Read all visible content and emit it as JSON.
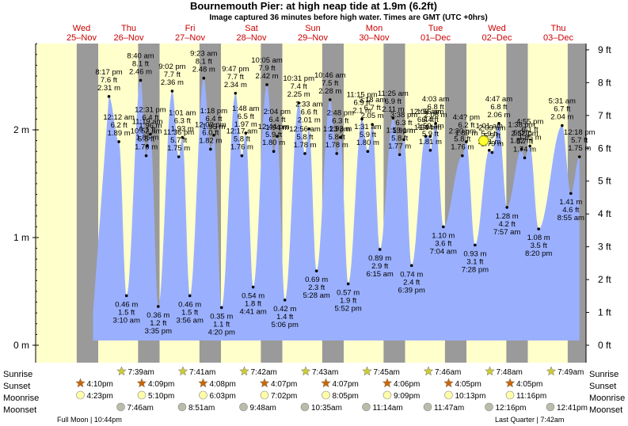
{
  "header": {
    "title": "Bournemouth Pier: at high  neap tide at 1.9m (6.2ft)",
    "subtitle": "Image captured 36 minutes before high water. Times are GMT (UTC +0hrs)"
  },
  "days": [
    {
      "dow": "Wed",
      "date": "25–Nov"
    },
    {
      "dow": "Thu",
      "date": "26–Nov"
    },
    {
      "dow": "Fri",
      "date": "27–Nov"
    },
    {
      "dow": "Sat",
      "date": "28–Nov"
    },
    {
      "dow": "Sun",
      "date": "29–Nov"
    },
    {
      "dow": "Mon",
      "date": "30–Nov"
    },
    {
      "dow": "Tue",
      "date": "01–Dec"
    },
    {
      "dow": "Wed",
      "date": "02–Dec"
    },
    {
      "dow": "Thu",
      "date": "03–Dec"
    }
  ],
  "axes": {
    "left_ticks": [
      "0 m",
      "1 m",
      "2 m"
    ],
    "right_ticks": [
      "0 ft",
      "1 ft",
      "2 ft",
      "3 ft",
      "4 ft",
      "5 ft",
      "6 ft",
      "7 ft",
      "8 ft",
      "9 ft"
    ]
  },
  "chart_data": {
    "type": "area",
    "x_unit": "hours from 25-Nov 00:00 GMT",
    "y_unit": "m",
    "ylim": [
      -0.05,
      2.95
    ],
    "xlim": [
      -5,
      220
    ],
    "current_point": {
      "t": 166.8,
      "h": 1.9
    },
    "series": [
      {
        "t": "8:17 pm",
        "d": 0,
        "h": 2.31,
        "ft": "7.6 ft",
        "m": "2.31 m"
      },
      {
        "t": "12:12 am",
        "d": 1,
        "h": 1.89,
        "ft": "6.2 ft",
        "m": "1.89 m"
      },
      {
        "t": "3:10 am",
        "d": 1,
        "h": 0.46,
        "ft": "1.5 ft",
        "m": "0.46 m"
      },
      {
        "t": "8:40 am",
        "d": 1,
        "h": 2.46,
        "ft": "8.1 ft",
        "m": "2.46 m"
      },
      {
        "t": "10:52 am",
        "d": 1,
        "h": 1.76,
        "ft": "5.8 ft",
        "m": "1.76 m"
      },
      {
        "t": "12:31 pm",
        "d": 1,
        "h": 1.96,
        "ft": "6.4 ft",
        "m": "1.96 m"
      },
      {
        "t": "3:35 pm",
        "d": 1,
        "h": 0.36,
        "ft": "1.2 ft",
        "m": "0.36 m"
      },
      {
        "t": "9:02 pm",
        "d": 1,
        "h": 2.36,
        "ft": "7.7 ft",
        "m": "2.36 m"
      },
      {
        "t": "11:19 am",
        "d": 1,
        "h": 1.85,
        "ft": "6.1 ft",
        "m": "1.85 m"
      },
      {
        "t": "1:01 am",
        "d": 2,
        "h": 1.93,
        "ft": "6.3 ft",
        "m": "1.93 m"
      },
      {
        "t": "3:56 am",
        "d": 2,
        "h": 0.46,
        "ft": "1.5 ft",
        "m": "0.46 m"
      },
      {
        "t": "9:23 am",
        "d": 2,
        "h": 2.48,
        "ft": "8.1 ft",
        "m": "2.48 m"
      },
      {
        "t": "11:36 pm",
        "d": 1,
        "h": 1.75,
        "ft": "5.7 ft",
        "m": "1.75 m"
      },
      {
        "t": "1:18 pm",
        "d": 2,
        "h": 1.95,
        "ft": "6.4 ft",
        "m": "1.95 m"
      },
      {
        "t": "4:20 pm",
        "d": 2,
        "h": 0.35,
        "ft": "1.1 ft",
        "m": "0.35 m"
      },
      {
        "t": "9:47 pm",
        "d": 2,
        "h": 2.34,
        "ft": "7.7 ft",
        "m": "2.34 m"
      },
      {
        "t": "12:02 pm",
        "d": 2,
        "h": 1.82,
        "ft": "6.0 ft",
        "m": "1.82 m"
      },
      {
        "t": "1:48 am",
        "d": 3,
        "h": 1.97,
        "ft": "6.5 ft",
        "m": "1.97 m"
      },
      {
        "t": "4:41 am",
        "d": 3,
        "h": 0.54,
        "ft": "1.8 ft",
        "m": "0.54 m"
      },
      {
        "t": "10:05 am",
        "d": 3,
        "h": 2.42,
        "ft": "7.9 ft",
        "m": "2.42 m"
      },
      {
        "t": "12:17 am",
        "d": 3,
        "h": 1.76,
        "ft": "5.8 ft",
        "m": "1.76 m"
      },
      {
        "t": "2:04 pm",
        "d": 3,
        "h": 1.94,
        "ft": "6.4 ft",
        "m": "1.94 m"
      },
      {
        "t": "5:06 pm",
        "d": 3,
        "h": 0.42,
        "ft": "1.4 ft",
        "m": "0.42 m"
      },
      {
        "t": "10:31 pm",
        "d": 3,
        "h": 2.25,
        "ft": "7.4 ft",
        "m": "2.25 m"
      },
      {
        "t": "12:44 pm",
        "d": 3,
        "h": 1.8,
        "ft": "5.9 ft",
        "m": "1.80 m"
      },
      {
        "t": "2:33 am",
        "d": 4,
        "h": 2.01,
        "ft": "6.6 ft",
        "m": "2.01 m"
      },
      {
        "t": "5:28 am",
        "d": 4,
        "h": 0.69,
        "ft": "2.3 ft",
        "m": "0.69 m"
      },
      {
        "t": "10:46 am",
        "d": 4,
        "h": 2.28,
        "ft": "7.5 ft",
        "m": "2.28 m"
      },
      {
        "t": "12:56 am",
        "d": 4,
        "h": 1.78,
        "ft": "5.8 ft",
        "m": "1.78 m"
      },
      {
        "t": "2:48 pm",
        "d": 4,
        "h": 1.93,
        "ft": "6.3 ft",
        "m": "1.93 m"
      },
      {
        "t": "5:52 pm",
        "d": 4,
        "h": 0.57,
        "ft": "1.9 ft",
        "m": "0.57 m"
      },
      {
        "t": "11:15 pm",
        "d": 4,
        "h": 2.1,
        "ft": "6.9 ft",
        "m": "2.1 m"
      },
      {
        "t": "1:23 pm",
        "d": 4,
        "h": 1.78,
        "ft": "5.8 ft",
        "m": "1.78 m"
      },
      {
        "t": "3:18 am",
        "d": 5,
        "h": 2.05,
        "ft": "6.7 ft",
        "m": "2.05 m"
      },
      {
        "t": "6:15 am",
        "d": 5,
        "h": 0.89,
        "ft": "2.9 ft",
        "m": "0.89 m"
      },
      {
        "t": "11:25 am",
        "d": 5,
        "h": 2.11,
        "ft": "6.9 ft",
        "m": "2.11 m"
      },
      {
        "t": "1:31 am",
        "d": 5,
        "h": 1.8,
        "ft": "5.9 ft",
        "m": "1.80 m"
      },
      {
        "t": "3:38 pm",
        "d": 5,
        "h": 1.91,
        "ft": "6.3 ft",
        "m": "1.91 m"
      },
      {
        "t": "6:39 pm",
        "d": 5,
        "h": 0.74,
        "ft": "2.4 ft",
        "m": "0.74 m"
      },
      {
        "t": "12:08 am",
        "d": 6,
        "h": 1.94,
        "ft": "6.4 ft",
        "m": "1.94 m"
      },
      {
        "t": "1:59 pm",
        "d": 5,
        "h": 1.77,
        "ft": "5.8 ft",
        "m": "1.77 m"
      },
      {
        "t": "4:03 am",
        "d": 6,
        "h": 2.06,
        "ft": "6.8 ft",
        "m": "2.06 m"
      },
      {
        "t": "7:04 am",
        "d": 6,
        "h": 1.1,
        "ft": "3.6 ft",
        "m": "1.10 m"
      },
      {
        "t": "1:59 am",
        "d": 6,
        "h": 1.81,
        "ft": "5.9 ft",
        "m": "1.81 m"
      },
      {
        "t": "1:56 am",
        "d": 6,
        "h": 1.94,
        "ft": "6.4 ft",
        "m": "1.94 m"
      },
      {
        "t": "4:4? pm",
        "d": 6,
        "h": 1.89,
        "ft": "6.2 ft",
        "m": "1.89 m"
      },
      {
        "t": "7:28 pm",
        "d": 6,
        "h": 0.93,
        "ft": "3.1 ft",
        "m": "0.93 m"
      },
      {
        "t": "2:30 pm",
        "d": 6,
        "h": 1.76,
        "ft": "5.8 ft",
        "m": "1.76 m"
      },
      {
        "t": "1:01 am",
        "d": 7,
        "h": 1.81,
        "ft": "5.9 ft",
        "m": "1.81 m"
      },
      {
        "t": "4:47 am",
        "d": 7,
        "h": 2.06,
        "ft": "6.8 ft",
        "m": "2.06 m"
      },
      {
        "t": "7:57 am",
        "d": 7,
        "h": 1.28,
        "ft": "4.2 ft",
        "m": "1.28 m"
      },
      {
        "t": "2:09 am",
        "d": 7,
        "h": 1.79,
        "ft": "5.9 ft",
        "m": "1.79 m"
      },
      {
        "t": "1:38 pm",
        "d": 7,
        "h": 1.82,
        "ft": "6.0 ft",
        "m": "1.82 m"
      },
      {
        "t": "4:55 pm",
        "d": 7,
        "h": 1.85,
        "ft": "6.1 ft",
        "m": "1.85 m"
      },
      {
        "t": "8:20 pm",
        "d": 7,
        "h": 1.08,
        "ft": "3.5 ft",
        "m": "1.08 m"
      },
      {
        "t": "2:52 pm",
        "d": 7,
        "h": 1.74,
        "ft": "5.7 ft",
        "m": "1.74 m"
      },
      {
        "t": "5:31 am",
        "d": 8,
        "h": 2.04,
        "ft": "6.7 ft",
        "m": "2.04 m"
      },
      {
        "t": "8:55 am",
        "d": 8,
        "h": 1.41,
        "ft": "4.6 ft",
        "m": "1.41 m"
      },
      {
        "t": "12:18 pm",
        "d": 8,
        "h": 1.75,
        "ft": "5.7 ft",
        "m": "1.75 m"
      }
    ]
  },
  "astro": {
    "labels": {
      "sunrise": "Sunrise",
      "sunset": "Sunset",
      "moonrise": "Moonrise",
      "moonset": "Moonset"
    },
    "sunrise": [
      "7:39am",
      "7:41am",
      "7:42am",
      "7:43am",
      "7:45am",
      "7:46am",
      "7:48am",
      "7:49am"
    ],
    "sunset": [
      "4:10pm",
      "4:09pm",
      "4:08pm",
      "4:07pm",
      "4:07pm",
      "4:06pm",
      "4:05pm",
      "4:05pm"
    ],
    "moonrise": [
      "4:23pm",
      "5:10pm",
      "6:03pm",
      "7:02pm",
      "8:05pm",
      "9:09pm",
      "10:13pm",
      "11:16pm"
    ],
    "moonset": [
      "7:46am",
      "8:51am",
      "9:48am",
      "10:35am",
      "11:14am",
      "11:47am",
      "12:16pm",
      "12:41pm"
    ],
    "full_moon": "Full Moon | 10:44pm",
    "last_quarter": "Last Quarter | 7:42am"
  },
  "colors": {
    "night": "#ffffcc",
    "day_bg": "#9a9a9a",
    "water": "#9ab0ff",
    "water_dark": "#6f6f6f",
    "date_red": "#cc0000",
    "sun": "#cccc33",
    "sunset": "#cc6600",
    "moon": "#ffffaa",
    "moonset": "#bbbbaa"
  }
}
